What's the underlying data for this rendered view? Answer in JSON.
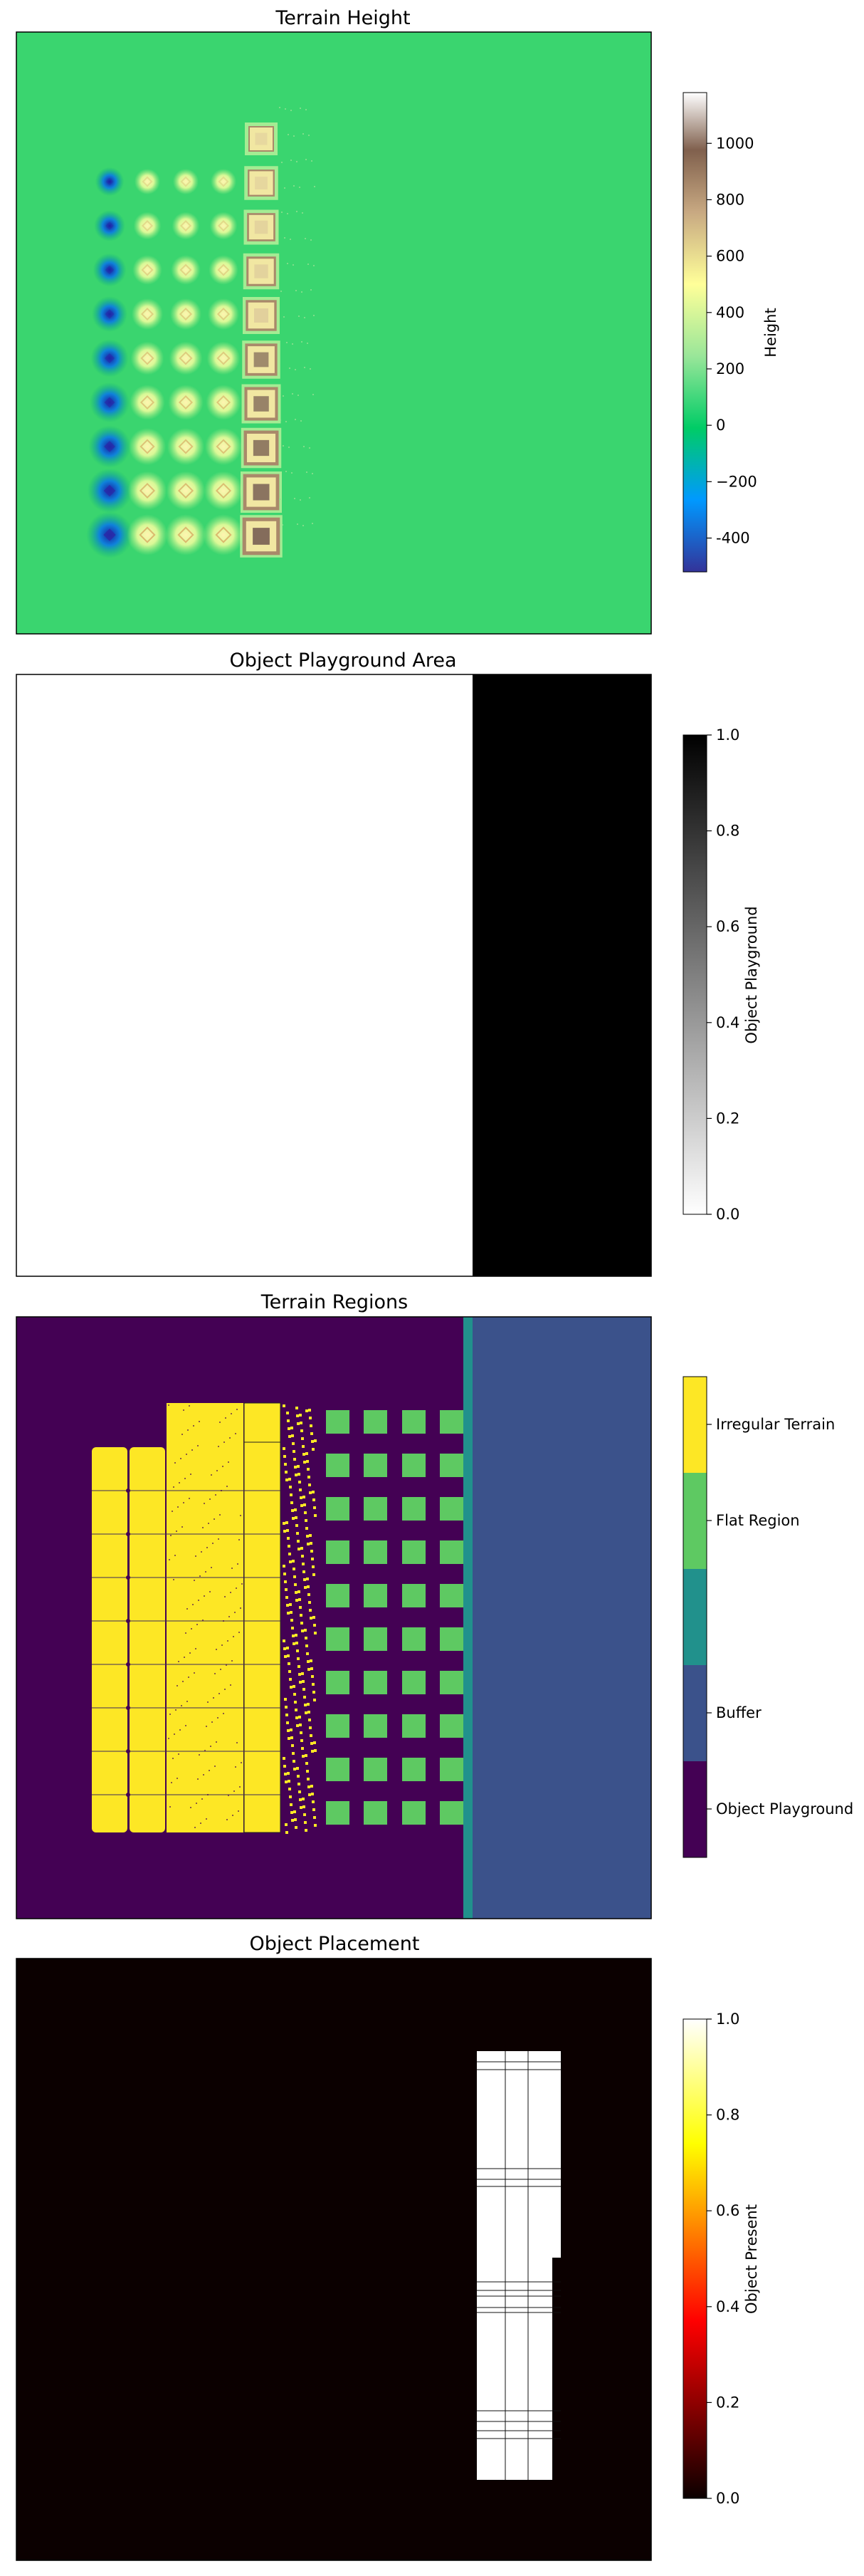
{
  "chart_data": [
    {
      "type": "heatmap",
      "title": "Terrain Height",
      "colorbar": {
        "label": "Height",
        "cmap": "terrain",
        "range": [
          -520,
          1180
        ],
        "ticks": [
          "-400",
          "−200",
          "0",
          "200",
          "400",
          "600",
          "800",
          "1000"
        ],
        "tick_values": [
          -400,
          -200,
          0,
          200,
          400,
          600,
          800,
          1000
        ]
      },
      "background_height": 0,
      "features": [
        {
          "column": 1,
          "kind": "depression",
          "depths": [
            -80,
            -100,
            -150,
            -200,
            -250,
            -300,
            -350,
            -420,
            -480
          ]
        },
        {
          "column": 2,
          "kind": "bump",
          "heights": [
            200,
            220,
            240,
            260,
            280,
            300,
            320,
            350,
            380
          ]
        },
        {
          "column": 3,
          "kind": "bump",
          "heights": [
            200,
            220,
            240,
            260,
            280,
            300,
            320,
            350,
            380
          ]
        },
        {
          "column": 4,
          "kind": "bump",
          "heights": [
            200,
            220,
            240,
            260,
            280,
            300,
            320,
            350,
            380
          ]
        },
        {
          "column": 5,
          "kind": "stepped-block",
          "heights": [
            300,
            400,
            500,
            600,
            700,
            800,
            900,
            1000,
            1100,
            1150
          ]
        }
      ]
    },
    {
      "type": "heatmap",
      "title": "Object Playground Area",
      "colorbar": {
        "label": "Object Playground",
        "cmap": "gray_r",
        "range": [
          0,
          1
        ],
        "ticks": [
          "0.0",
          "0.2",
          "0.4",
          "0.6",
          "0.8",
          "1.0"
        ],
        "tick_values": [
          0,
          0.2,
          0.4,
          0.6,
          0.8,
          1.0
        ]
      },
      "regions": [
        {
          "name": "non-playground",
          "value": 0,
          "x_fraction": [
            0,
            0.718
          ]
        },
        {
          "name": "playground",
          "value": 1,
          "x_fraction": [
            0.718,
            1
          ]
        }
      ]
    },
    {
      "type": "heatmap",
      "title": "Terrain Regions",
      "colorbar": {
        "label": "",
        "cmap": "viridis",
        "categories": [
          "Object Playground",
          "Buffer",
          "Flat Region",
          "Irregular Terrain"
        ],
        "colors": [
          "#440154",
          "#3b528b",
          "#5ec962",
          "#fde725"
        ],
        "buffer_strip_color": "#21918c"
      },
      "grid": {
        "flat_region_blocks": {
          "rows": 10,
          "cols": 4
        },
        "irregular_cells": {
          "rows": 9,
          "cols": 4
        }
      }
    },
    {
      "type": "heatmap",
      "title": "Object Placement",
      "colorbar": {
        "label": "Object Present",
        "cmap": "hot",
        "range": [
          0,
          1
        ],
        "ticks": [
          "0.0",
          "0.2",
          "0.4",
          "0.6",
          "0.8",
          "1.0"
        ],
        "tick_values": [
          0,
          0.2,
          0.4,
          0.6,
          0.8,
          1.0
        ]
      },
      "regions": [
        {
          "name": "empty",
          "value": 0
        },
        {
          "name": "objects",
          "value": 1
        }
      ]
    }
  ]
}
